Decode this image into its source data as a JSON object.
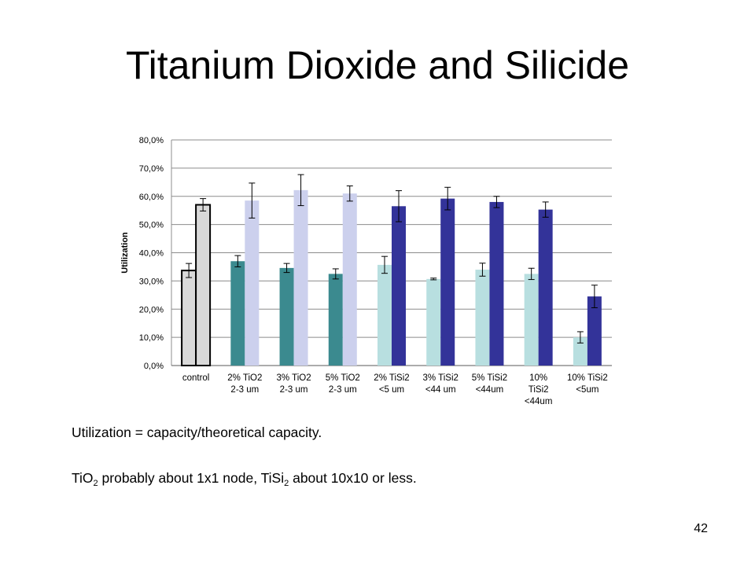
{
  "slide": {
    "title": "Titanium Dioxide and Silicide",
    "note_1": "Utilization = capacity/theoretical capacity.",
    "note_2": {
      "t1": "TiO",
      "s1": "2",
      "t2": " probably about 1x1 node, TiSi",
      "s2": "2",
      "t3": " about 10x10 or less."
    },
    "page_number": "42"
  },
  "chart_data": {
    "type": "bar",
    "title": "",
    "xlabel": "",
    "ylabel": "Utilization",
    "ylim": [
      0,
      0.8
    ],
    "yticks": [
      0,
      0.1,
      0.2,
      0.3,
      0.4,
      0.5,
      0.6,
      0.7,
      0.8
    ],
    "ytick_labels": [
      "0,0%",
      "10,0%",
      "20,0%",
      "30,0%",
      "40,0%",
      "50,0%",
      "60,0%",
      "70,0%",
      "80,0%"
    ],
    "grid": true,
    "legend": "none",
    "categories": [
      [
        "control"
      ],
      [
        "2% TiO2",
        "2-3 um"
      ],
      [
        "3% TiO2",
        "2-3 um"
      ],
      [
        "5% TiO2",
        "2-3 um"
      ],
      [
        "2% TiSi2",
        "<5 um"
      ],
      [
        "3% TiSi2",
        "<44 um"
      ],
      [
        "5% TiSi2",
        "<44um"
      ],
      [
        "10%",
        "TiSi2",
        "<44um"
      ],
      [
        "10% TiSi2",
        "<5um"
      ]
    ],
    "bars": [
      [
        {
          "value": 0.337,
          "err": 0.025,
          "color": "#d9d9d9",
          "outline": true
        },
        {
          "value": 0.57,
          "err": 0.022,
          "color": "#d9d9d9",
          "outline": true
        }
      ],
      [
        {
          "value": 0.37,
          "err": 0.02,
          "color": "#3b8a8f"
        },
        {
          "value": 0.585,
          "err": 0.062,
          "color": "#ccd0ed"
        }
      ],
      [
        {
          "value": 0.346,
          "err": 0.016,
          "color": "#3b8a8f"
        },
        {
          "value": 0.622,
          "err": 0.055,
          "color": "#ccd0ed"
        }
      ],
      [
        {
          "value": 0.325,
          "err": 0.018,
          "color": "#3b8a8f"
        },
        {
          "value": 0.61,
          "err": 0.027,
          "color": "#ccd0ed"
        }
      ],
      [
        {
          "value": 0.357,
          "err": 0.03,
          "color": "#b8dfe0"
        },
        {
          "value": 0.565,
          "err": 0.055,
          "color": "#333399"
        }
      ],
      [
        {
          "value": 0.307,
          "err": 0.003,
          "color": "#b8dfe0"
        },
        {
          "value": 0.592,
          "err": 0.04,
          "color": "#333399"
        }
      ],
      [
        {
          "value": 0.34,
          "err": 0.023,
          "color": "#b8dfe0"
        },
        {
          "value": 0.58,
          "err": 0.02,
          "color": "#333399"
        }
      ],
      [
        {
          "value": 0.325,
          "err": 0.02,
          "color": "#b8dfe0"
        },
        {
          "value": 0.553,
          "err": 0.027,
          "color": "#333399"
        }
      ],
      [
        {
          "value": 0.1,
          "err": 0.02,
          "color": "#b8dfe0"
        },
        {
          "value": 0.245,
          "err": 0.04,
          "color": "#333399"
        }
      ]
    ]
  }
}
